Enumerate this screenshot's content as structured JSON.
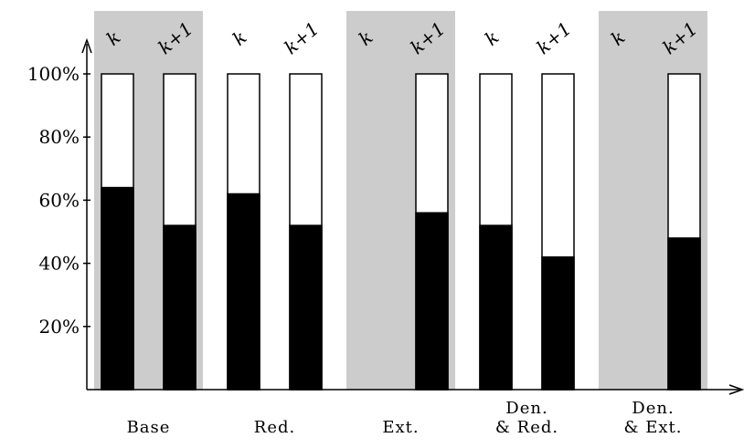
{
  "chart_data": {
    "type": "bar",
    "stacked": true,
    "title": "",
    "xlabel": "",
    "ylabel": "",
    "ylim": [
      0,
      100
    ],
    "yticks": [
      "20%",
      "40%",
      "60%",
      "80%",
      "100%"
    ],
    "ytick_values": [
      20,
      40,
      60,
      80,
      100
    ],
    "groups": [
      {
        "label": [
          "Base"
        ],
        "shaded": true,
        "bars": [
          {
            "label": "k",
            "value": 64,
            "present": true
          },
          {
            "label": "k+1",
            "value": 52,
            "present": true
          }
        ]
      },
      {
        "label": [
          "Red."
        ],
        "shaded": false,
        "bars": [
          {
            "label": "k",
            "value": 62,
            "present": true
          },
          {
            "label": "k+1",
            "value": 52,
            "present": true
          }
        ]
      },
      {
        "label": [
          "Ext."
        ],
        "shaded": true,
        "bars": [
          {
            "label": "k",
            "value": 0,
            "present": false
          },
          {
            "label": "k+1",
            "value": 56,
            "present": true
          }
        ]
      },
      {
        "label": [
          "Den.",
          "& Red."
        ],
        "shaded": false,
        "bars": [
          {
            "label": "k",
            "value": 52,
            "present": true
          },
          {
            "label": "k+1",
            "value": 42,
            "present": true
          }
        ]
      },
      {
        "label": [
          "Den.",
          "& Ext."
        ],
        "shaded": true,
        "bars": [
          {
            "label": "k",
            "value": 0,
            "present": false
          },
          {
            "label": "k+1",
            "value": 48,
            "present": true
          }
        ]
      }
    ],
    "colors": {
      "filled": "#000000",
      "remainder": "#ffffff",
      "group_shade": "#cccccc",
      "outline": "#000000"
    },
    "grid": false,
    "legend": "none"
  }
}
